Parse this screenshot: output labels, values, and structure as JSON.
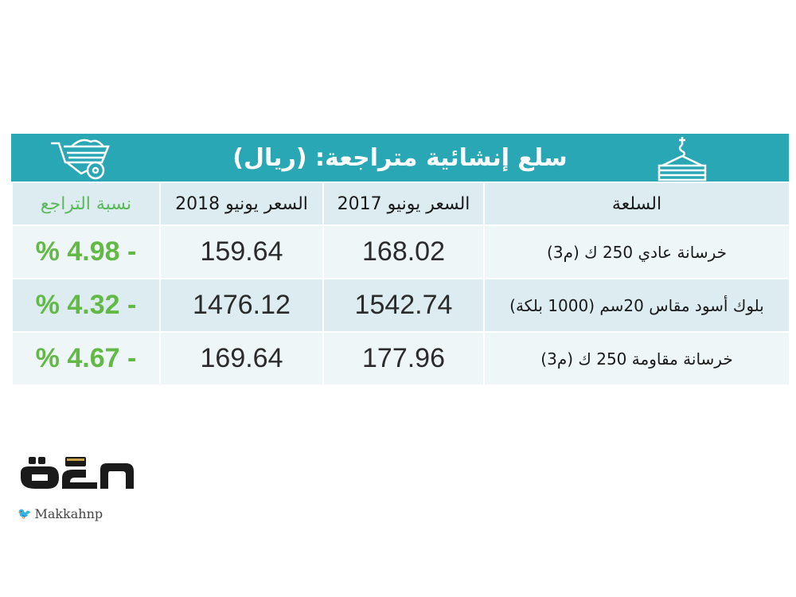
{
  "title": "سلع إنشائية متراجعة: (ريال)",
  "colors": {
    "accent": "#2aa7b4",
    "header_bg": "#dcecf0",
    "row_light": "#eef6f8",
    "percent_green": "#62b946"
  },
  "table": {
    "headers": {
      "commodity": "السلعة",
      "price_2017": "السعر يونيو 2017",
      "price_2018": "السعر يونيو 2018",
      "percent": "نسبة التراجع"
    },
    "rows": [
      {
        "commodity": "خرسانة عادي 250 ك (م3)",
        "price_2017": "168.02",
        "price_2018": "159.64",
        "percent": "- 4.98 %"
      },
      {
        "commodity": "بلوك أسود مقاس 20سم (1000 بلكة)",
        "price_2017": "1542.74",
        "price_2018": "1476.12",
        "percent": "- 4.32 %"
      },
      {
        "commodity": "خرسانة مقاومة 250 ك (م3)",
        "price_2017": "177.96",
        "price_2018": "169.64",
        "percent": "- 4.67 %"
      }
    ]
  },
  "logo": {
    "name": "مكة",
    "handle": "Makkahnp"
  },
  "icons": {
    "crane": "crane-hook-icon",
    "barrow": "wheelbarrow-icon",
    "social": "twitter-bird-icon"
  }
}
